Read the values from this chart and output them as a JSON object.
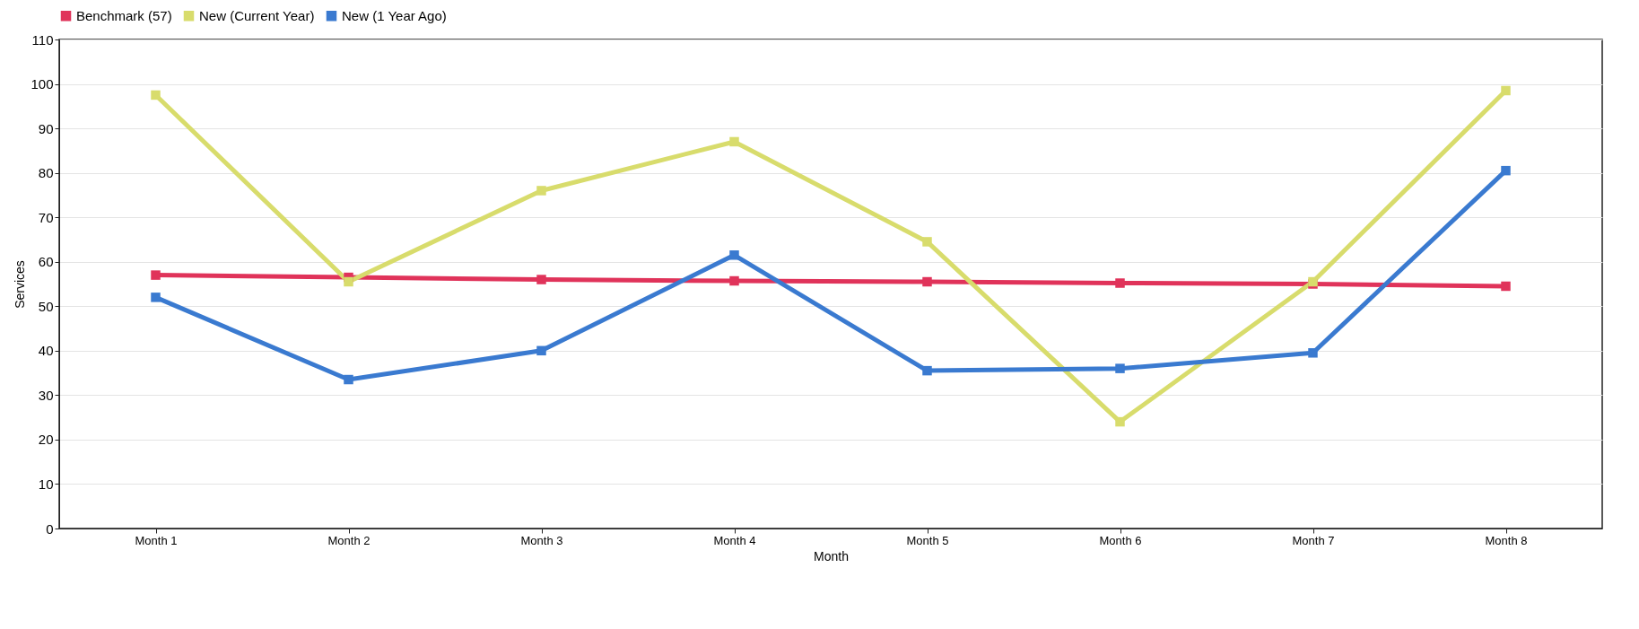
{
  "chart_data": {
    "type": "line",
    "xlabel": "Month",
    "ylabel": "Services",
    "categories": [
      "Month 1",
      "Month 2",
      "Month 3",
      "Month 4",
      "Month 5",
      "Month 6",
      "Month 7",
      "Month 8"
    ],
    "series": [
      {
        "name": "Benchmark (57)",
        "color": "#e0335a",
        "values": [
          57,
          56.5,
          56,
          55.7,
          55.5,
          55.2,
          55,
          54.5
        ]
      },
      {
        "name": "New (Current Year)",
        "color": "#d8dc6c",
        "values": [
          97.5,
          55.5,
          76,
          87,
          64.5,
          24,
          55.5,
          98.5
        ]
      },
      {
        "name": "New (1 Year Ago)",
        "color": "#3a7ad0",
        "values": [
          52,
          33.5,
          40,
          61.5,
          35.5,
          36,
          39.5,
          80.5
        ]
      }
    ],
    "ylim": [
      0,
      110
    ],
    "yticks": [
      0,
      10,
      20,
      30,
      40,
      50,
      60,
      70,
      80,
      90,
      100,
      110
    ],
    "grid": "y",
    "legend": "top",
    "marker": "square",
    "line_style": "solid"
  }
}
